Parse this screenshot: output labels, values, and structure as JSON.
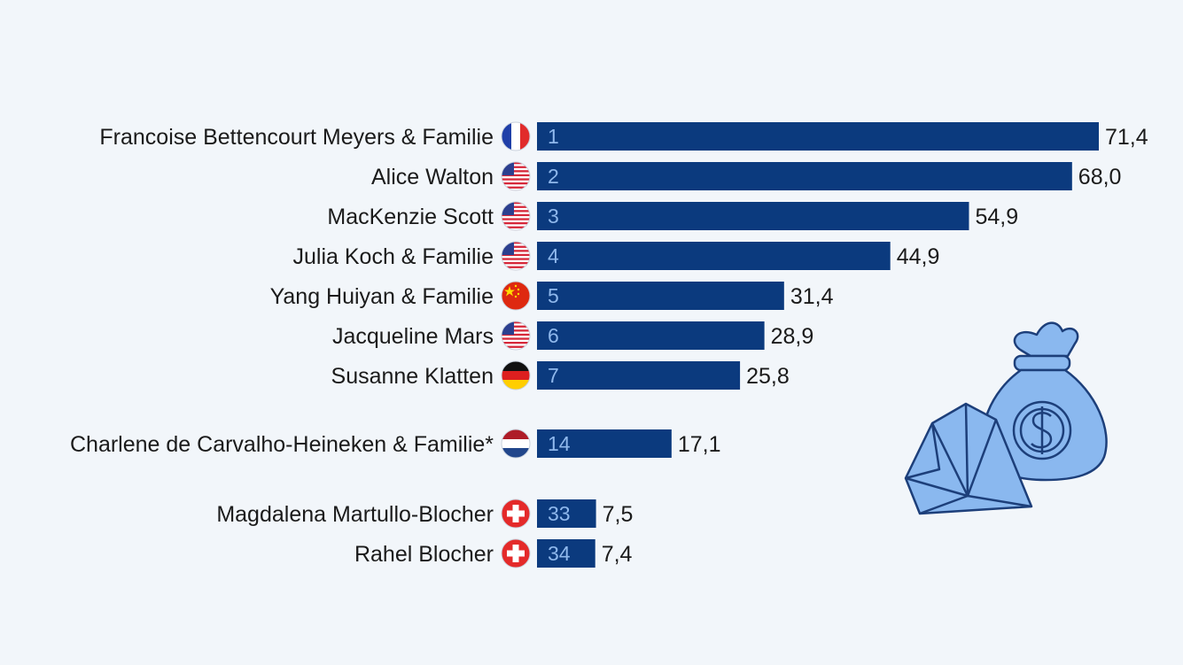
{
  "chart_data": {
    "type": "bar",
    "orientation": "horizontal",
    "bar_color": "#0b3a7e",
    "rank_color": "#8fb8ec",
    "xlim": [
      0,
      71.4
    ],
    "categories": [
      "Francoise Bettencourt Meyers & Familie",
      "Alice Walton",
      "MacKenzie Scott",
      "Julia Koch & Familie",
      "Yang Huiyan & Familie",
      "Jacqueline Mars",
      "Susanne Klatten",
      "Charlene de Carvalho-Heineken & Familie*",
      "Magdalena Martullo-Blocher",
      "Rahel Blocher"
    ],
    "ranks": [
      "1",
      "2",
      "3",
      "4",
      "5",
      "6",
      "7",
      "14",
      "33",
      "34"
    ],
    "values": [
      71.4,
      68.0,
      54.9,
      44.9,
      31.4,
      28.9,
      25.8,
      17.1,
      7.5,
      7.4
    ],
    "value_labels": [
      "71,4",
      "68,0",
      "54,9",
      "44,9",
      "31,4",
      "28,9",
      "25,8",
      "17,1",
      "7,5",
      "7,4"
    ],
    "flags": [
      "france-flag",
      "usa-flag",
      "usa-flag",
      "usa-flag",
      "china-flag",
      "usa-flag",
      "germany-flag",
      "netherlands-flag",
      "switzerland-flag",
      "switzerland-flag"
    ],
    "groups": [
      0,
      0,
      0,
      0,
      0,
      0,
      0,
      1,
      2,
      2
    ]
  },
  "illustration": {
    "icons": [
      "diamond-icon",
      "money-bag-icon",
      "dollar-sign-icon"
    ],
    "fill_color": "#8ab8ef",
    "outline_color": "#1d3f7a"
  }
}
